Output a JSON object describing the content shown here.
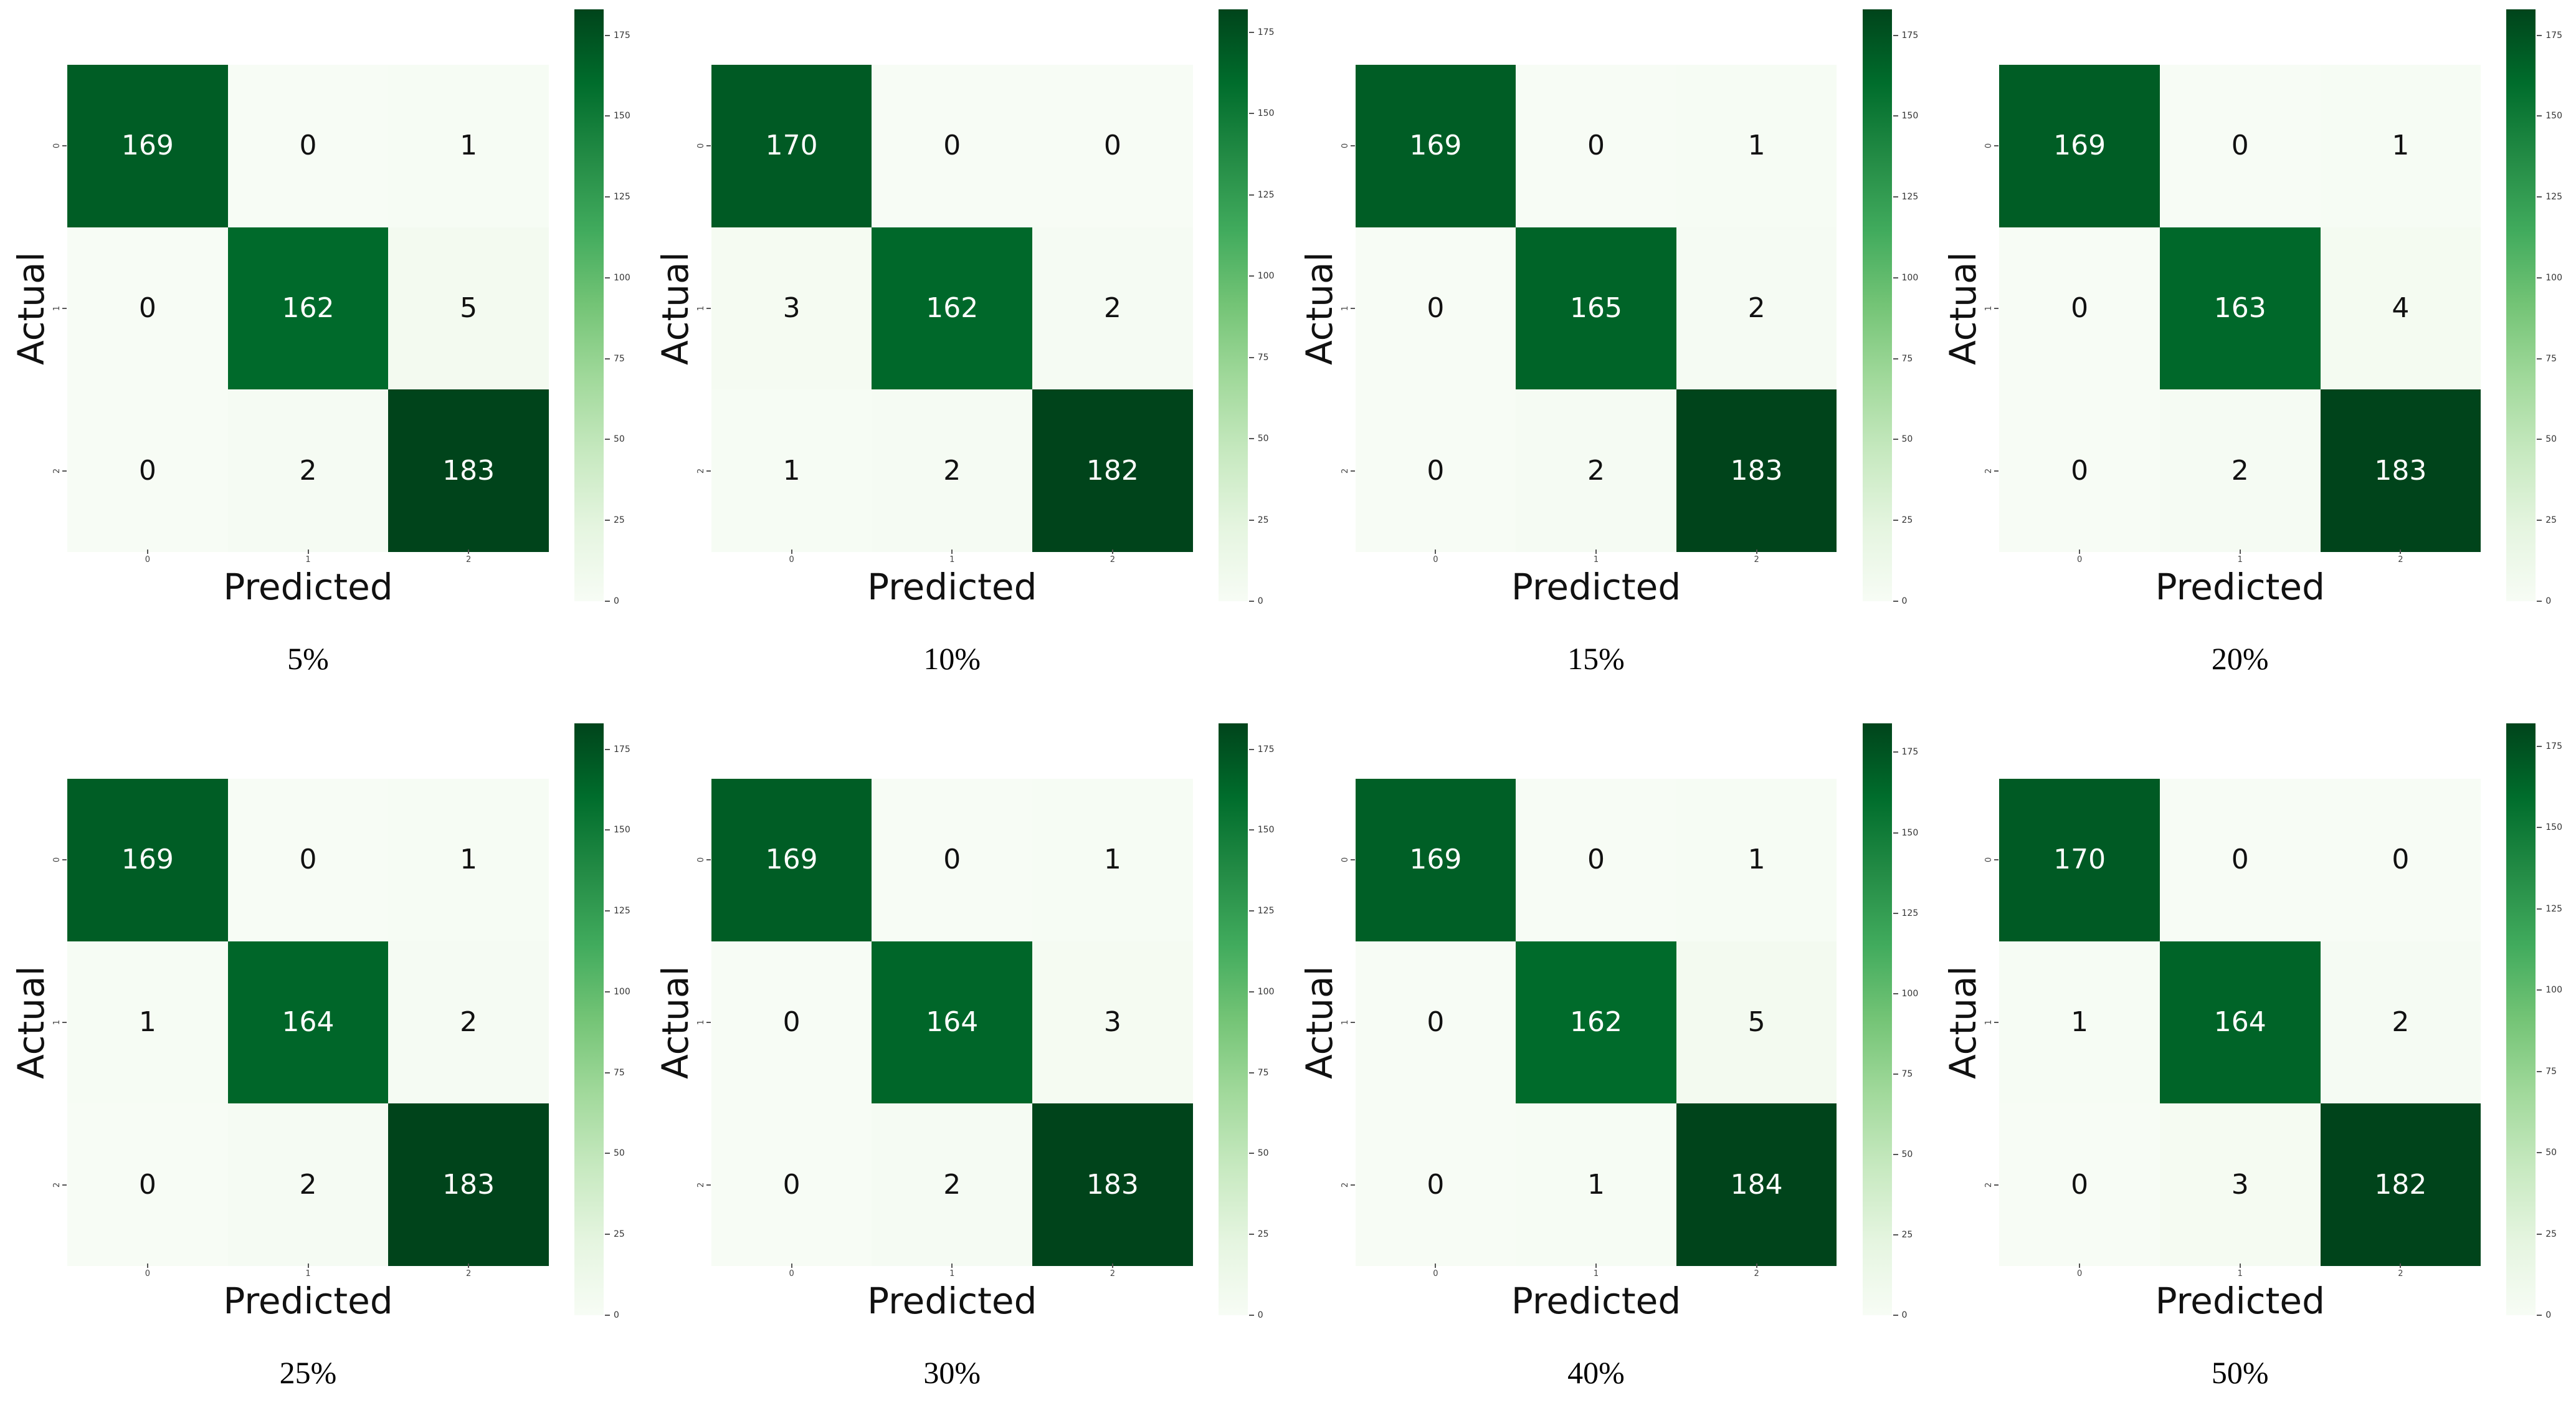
{
  "figure": {
    "description": "2x4 grid of confusion matrix heatmaps for different percentages",
    "xlabel": "Predicted",
    "ylabel": "Actual",
    "background": "#ffffff",
    "colormap_name": "Greens",
    "colormap_stops": [
      "#f7fcf5",
      "#e5f5e0",
      "#c7e9c0",
      "#a1d99b",
      "#74c476",
      "#41ab5d",
      "#238b45",
      "#006d2c",
      "#00441b"
    ],
    "cell_text_dark": "#111111",
    "cell_text_light": "#ffffff"
  },
  "chart_data": [
    {
      "type": "heatmap",
      "title": "5%",
      "xlabel": "Predicted",
      "ylabel": "Actual",
      "x_ticks": [
        "0",
        "1",
        "2"
      ],
      "y_ticks": [
        "0",
        "1",
        "2"
      ],
      "matrix": [
        [
          169,
          0,
          1
        ],
        [
          0,
          162,
          5
        ],
        [
          0,
          2,
          183
        ]
      ],
      "vmin": 0,
      "vmax": 183,
      "colorbar_ticks": [
        0,
        25,
        50,
        75,
        100,
        125,
        150,
        175
      ]
    },
    {
      "type": "heatmap",
      "title": "10%",
      "xlabel": "Predicted",
      "ylabel": "Actual",
      "x_ticks": [
        "0",
        "1",
        "2"
      ],
      "y_ticks": [
        "0",
        "1",
        "2"
      ],
      "matrix": [
        [
          170,
          0,
          0
        ],
        [
          3,
          162,
          2
        ],
        [
          1,
          2,
          182
        ]
      ],
      "vmin": 0,
      "vmax": 182,
      "colorbar_ticks": [
        0,
        25,
        50,
        75,
        100,
        125,
        150,
        175
      ]
    },
    {
      "type": "heatmap",
      "title": "15%",
      "xlabel": "Predicted",
      "ylabel": "Actual",
      "x_ticks": [
        "0",
        "1",
        "2"
      ],
      "y_ticks": [
        "0",
        "1",
        "2"
      ],
      "matrix": [
        [
          169,
          0,
          1
        ],
        [
          0,
          165,
          2
        ],
        [
          0,
          2,
          183
        ]
      ],
      "vmin": 0,
      "vmax": 183,
      "colorbar_ticks": [
        0,
        25,
        50,
        75,
        100,
        125,
        150,
        175
      ]
    },
    {
      "type": "heatmap",
      "title": "20%",
      "xlabel": "Predicted",
      "ylabel": "Actual",
      "x_ticks": [
        "0",
        "1",
        "2"
      ],
      "y_ticks": [
        "0",
        "1",
        "2"
      ],
      "matrix": [
        [
          169,
          0,
          1
        ],
        [
          0,
          163,
          4
        ],
        [
          0,
          2,
          183
        ]
      ],
      "vmin": 0,
      "vmax": 183,
      "colorbar_ticks": [
        0,
        25,
        50,
        75,
        100,
        125,
        150,
        175
      ]
    },
    {
      "type": "heatmap",
      "title": "25%",
      "xlabel": "Predicted",
      "ylabel": "Actual",
      "x_ticks": [
        "0",
        "1",
        "2"
      ],
      "y_ticks": [
        "0",
        "1",
        "2"
      ],
      "matrix": [
        [
          169,
          0,
          1
        ],
        [
          1,
          164,
          2
        ],
        [
          0,
          2,
          183
        ]
      ],
      "vmin": 0,
      "vmax": 183,
      "colorbar_ticks": [
        0,
        25,
        50,
        75,
        100,
        125,
        150,
        175
      ]
    },
    {
      "type": "heatmap",
      "title": "30%",
      "xlabel": "Predicted",
      "ylabel": "Actual",
      "x_ticks": [
        "0",
        "1",
        "2"
      ],
      "y_ticks": [
        "0",
        "1",
        "2"
      ],
      "matrix": [
        [
          169,
          0,
          1
        ],
        [
          0,
          164,
          3
        ],
        [
          0,
          2,
          183
        ]
      ],
      "vmin": 0,
      "vmax": 183,
      "colorbar_ticks": [
        0,
        25,
        50,
        75,
        100,
        125,
        150,
        175
      ]
    },
    {
      "type": "heatmap",
      "title": "40%",
      "xlabel": "Predicted",
      "ylabel": "Actual",
      "x_ticks": [
        "0",
        "1",
        "2"
      ],
      "y_ticks": [
        "0",
        "1",
        "2"
      ],
      "matrix": [
        [
          169,
          0,
          1
        ],
        [
          0,
          162,
          5
        ],
        [
          0,
          1,
          184
        ]
      ],
      "vmin": 0,
      "vmax": 184,
      "colorbar_ticks": [
        0,
        25,
        50,
        75,
        100,
        125,
        150,
        175
      ]
    },
    {
      "type": "heatmap",
      "title": "50%",
      "xlabel": "Predicted",
      "ylabel": "Actual",
      "x_ticks": [
        "0",
        "1",
        "2"
      ],
      "y_ticks": [
        "0",
        "1",
        "2"
      ],
      "matrix": [
        [
          170,
          0,
          0
        ],
        [
          1,
          164,
          2
        ],
        [
          0,
          3,
          182
        ]
      ],
      "vmin": 0,
      "vmax": 182,
      "colorbar_ticks": [
        0,
        25,
        50,
        75,
        100,
        125,
        150,
        175
      ]
    }
  ]
}
